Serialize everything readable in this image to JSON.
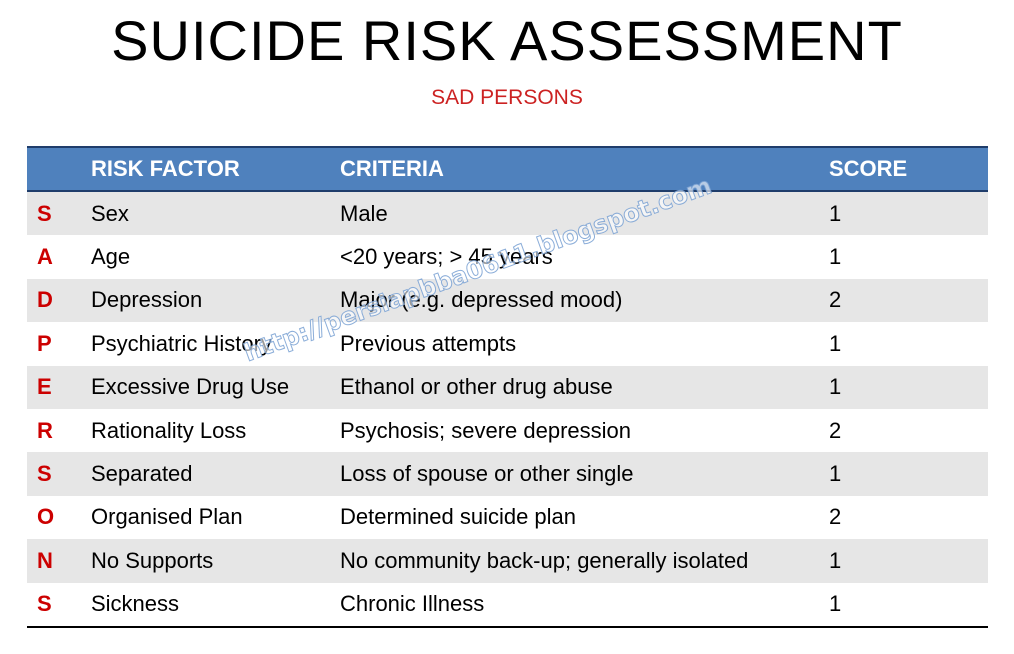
{
  "title": "SUICIDE RISK ASSESSMENT",
  "subtitle": "SAD PERSONS",
  "headers": {
    "letter": "",
    "factor": "RISK FACTOR",
    "criteria": "CRITERIA",
    "score": "SCORE"
  },
  "rows": [
    {
      "letter": "S",
      "factor": "Sex",
      "criteria": "Male",
      "score": "1"
    },
    {
      "letter": "A",
      "factor": "Age",
      "criteria": "<20 years; > 45 years",
      "score": "1"
    },
    {
      "letter": "D",
      "factor": "Depression",
      "criteria": "Major (e.g. depressed mood)",
      "score": "2"
    },
    {
      "letter": "P",
      "factor": "Psychiatric History",
      "criteria": "Previous attempts",
      "score": "1"
    },
    {
      "letter": "E",
      "factor": "Excessive Drug Use",
      "criteria": "Ethanol or other drug abuse",
      "score": "1"
    },
    {
      "letter": "R",
      "factor": "Rationality Loss",
      "criteria": "Psychosis; severe depression",
      "score": "2"
    },
    {
      "letter": "S",
      "factor": "Separated",
      "criteria": "Loss of spouse or other single",
      "score": "1"
    },
    {
      "letter": "O",
      "factor": "Organised Plan",
      "criteria": "Determined suicide plan",
      "score": "2"
    },
    {
      "letter": "N",
      "factor": "No Supports",
      "criteria": "No community back-up; generally isolated",
      "score": "1"
    },
    {
      "letter": "S",
      "factor": "Sickness",
      "criteria": "Chronic Illness",
      "score": "1"
    }
  ],
  "watermark": "http://persiapbba0611.blogspot.com",
  "colors": {
    "header": "#4f81bd",
    "accent": "#cc0000",
    "stripe": "#e6e6e6"
  }
}
